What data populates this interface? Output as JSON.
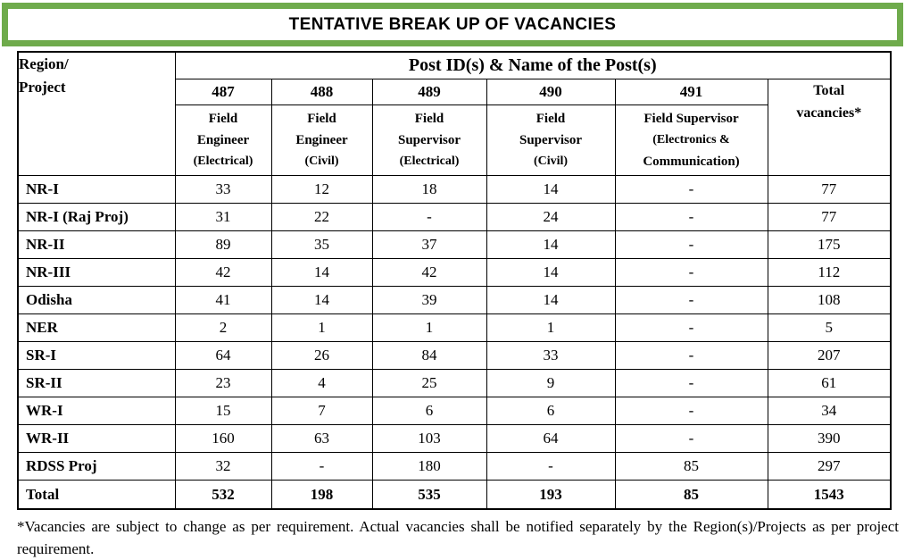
{
  "title": "TENTATIVE BREAK UP OF VACANCIES",
  "colors": {
    "frame_green": "#6fab4c",
    "border_black": "#000000",
    "background": "#ffffff"
  },
  "table": {
    "corner": {
      "line1": "Region/",
      "line2": "Project"
    },
    "group_header": "Post ID(s) & Name of the Post(s)",
    "total_header": {
      "line1": "Total",
      "line2": "vacancies*"
    },
    "post_ids": [
      "487",
      "488",
      "489",
      "490",
      "491"
    ],
    "post_names": [
      [
        "Field",
        "Engineer",
        "(Electrical)"
      ],
      [
        "Field",
        "Engineer",
        "(Civil)"
      ],
      [
        "Field",
        "Supervisor",
        "(Electrical)"
      ],
      [
        "Field",
        "Supervisor",
        "(Civil)"
      ],
      [
        "Field Supervisor",
        "(Electronics &",
        "Communication)"
      ]
    ],
    "rows": [
      {
        "region": "NR-I",
        "values": [
          "33",
          "12",
          "18",
          "14",
          "-",
          "77"
        ],
        "bold": false
      },
      {
        "region": "NR-I (Raj Proj)",
        "values": [
          "31",
          "22",
          "-",
          "24",
          "-",
          "77"
        ],
        "bold": false
      },
      {
        "region": "NR-II",
        "values": [
          "89",
          "35",
          "37",
          "14",
          "-",
          "175"
        ],
        "bold": false
      },
      {
        "region": "NR-III",
        "values": [
          "42",
          "14",
          "42",
          "14",
          "-",
          "112"
        ],
        "bold": false
      },
      {
        "region": "Odisha",
        "values": [
          "41",
          "14",
          "39",
          "14",
          "-",
          "108"
        ],
        "bold": false
      },
      {
        "region": "NER",
        "values": [
          "2",
          "1",
          "1",
          "1",
          "-",
          "5"
        ],
        "bold": false
      },
      {
        "region": "SR-I",
        "values": [
          "64",
          "26",
          "84",
          "33",
          "-",
          "207"
        ],
        "bold": false
      },
      {
        "region": "SR-II",
        "values": [
          "23",
          "4",
          "25",
          "9",
          "-",
          "61"
        ],
        "bold": false
      },
      {
        "region": "WR-I",
        "values": [
          "15",
          "7",
          "6",
          "6",
          "-",
          "34"
        ],
        "bold": false
      },
      {
        "region": "WR-II",
        "values": [
          "160",
          "63",
          "103",
          "64",
          "-",
          "390"
        ],
        "bold": false
      },
      {
        "region": "RDSS Proj",
        "values": [
          "32",
          "-",
          "180",
          "-",
          "85",
          "297"
        ],
        "bold": false
      },
      {
        "region": "Total",
        "values": [
          "532",
          "198",
          "535",
          "193",
          "85",
          "1543"
        ],
        "bold": true
      }
    ]
  },
  "footnote": "*Vacancies are subject to change as per requirement. Actual vacancies shall be notified separately by the Region(s)/Projects as per project requirement."
}
